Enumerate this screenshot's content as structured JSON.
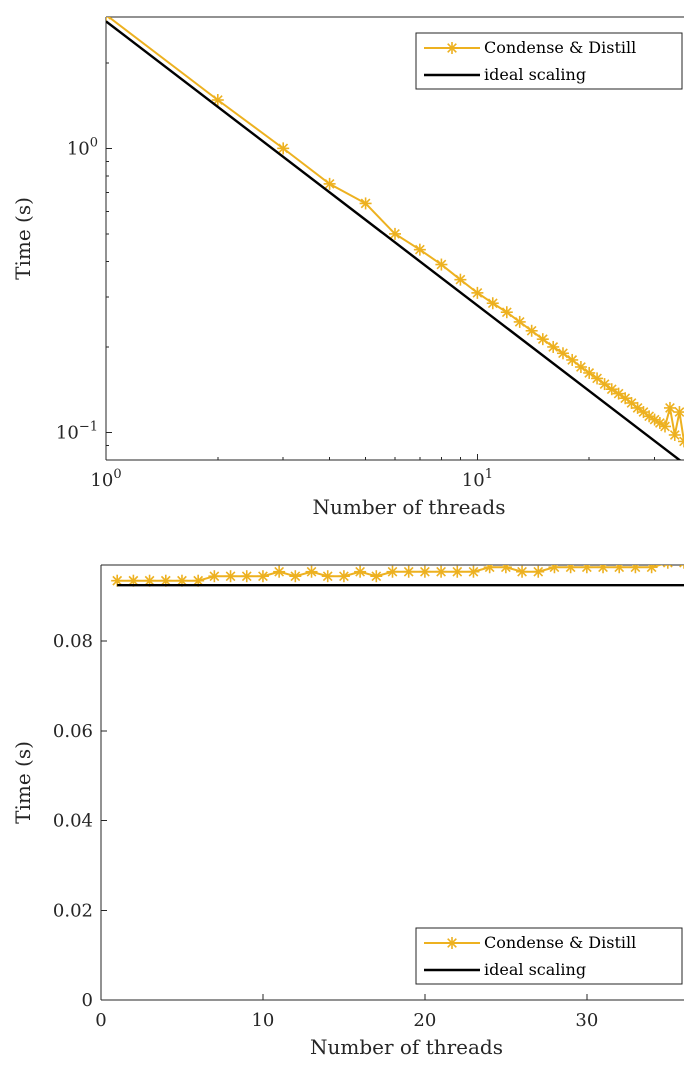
{
  "colors": {
    "measured": "#EDB120",
    "ideal": "#000000",
    "axis": "#262626"
  },
  "chart_data": [
    {
      "type": "line",
      "xscale": "log",
      "yscale": "log",
      "xlabel": "Number of threads",
      "ylabel": "Time (s)",
      "xlim": [
        1,
        36
      ],
      "ylim": [
        0.08,
        2.9
      ],
      "xticks": [
        {
          "value": 1,
          "base": "10",
          "exp": "0"
        },
        {
          "value": 10,
          "base": "10",
          "exp": "1"
        }
      ],
      "yticks": [
        {
          "value": 0.1,
          "base": "10",
          "exp": "−1"
        },
        {
          "value": 1,
          "base": "10",
          "exp": "0"
        }
      ],
      "legend": {
        "position": "top-right"
      },
      "series": [
        {
          "name": "Condense & Distill",
          "marker": "asterisk",
          "x": [
            1,
            2,
            3,
            4,
            5,
            6,
            7,
            8,
            9,
            10,
            11,
            12,
            13,
            14,
            15,
            16,
            17,
            18,
            19,
            20,
            21,
            22,
            23,
            24,
            25,
            26,
            27,
            28,
            29,
            30,
            31,
            32,
            33,
            34,
            35,
            36
          ],
          "y": [
            2.95,
            1.48,
            1.0,
            0.75,
            0.64,
            0.5,
            0.44,
            0.39,
            0.345,
            0.31,
            0.285,
            0.265,
            0.245,
            0.228,
            0.213,
            0.2,
            0.19,
            0.18,
            0.17,
            0.162,
            0.155,
            0.148,
            0.142,
            0.137,
            0.132,
            0.127,
            0.122,
            0.118,
            0.114,
            0.111,
            0.108,
            0.105,
            0.122,
            0.098,
            0.118,
            0.093
          ]
        },
        {
          "name": "ideal scaling",
          "marker": "none",
          "x": [
            1,
            36
          ],
          "y": [
            2.8,
            0.0778
          ]
        }
      ]
    },
    {
      "type": "line",
      "xlabel": "Number of threads",
      "ylabel": "Time (s)",
      "xlim": [
        0,
        36
      ],
      "ylim": [
        0,
        0.097
      ],
      "xticks": [
        0,
        10,
        20,
        30
      ],
      "yticks": [
        0,
        0.02,
        0.04,
        0.06,
        0.08
      ],
      "ytick_labels": [
        "0",
        "0.02",
        "0.04",
        "0.06",
        "0.08"
      ],
      "legend": {
        "position": "bottom-right"
      },
      "series": [
        {
          "name": "Condense & Distill",
          "marker": "asterisk",
          "x": [
            1,
            2,
            3,
            4,
            5,
            6,
            7,
            8,
            9,
            10,
            11,
            12,
            13,
            14,
            15,
            16,
            17,
            18,
            19,
            20,
            21,
            22,
            23,
            24,
            25,
            26,
            27,
            28,
            29,
            30,
            31,
            32,
            33,
            34,
            35,
            36
          ],
          "y": [
            0.0935,
            0.0935,
            0.0935,
            0.0935,
            0.0935,
            0.0935,
            0.0945,
            0.0945,
            0.0945,
            0.0945,
            0.0955,
            0.0945,
            0.0955,
            0.0945,
            0.0945,
            0.0955,
            0.0945,
            0.0955,
            0.0955,
            0.0955,
            0.0955,
            0.0955,
            0.0955,
            0.0965,
            0.0965,
            0.0955,
            0.0955,
            0.0965,
            0.0965,
            0.0965,
            0.0965,
            0.0965,
            0.0965,
            0.0965,
            0.0975,
            0.0975
          ]
        },
        {
          "name": "ideal scaling",
          "marker": "none",
          "x": [
            1,
            36
          ],
          "y": [
            0.0925,
            0.0925
          ]
        }
      ]
    }
  ]
}
